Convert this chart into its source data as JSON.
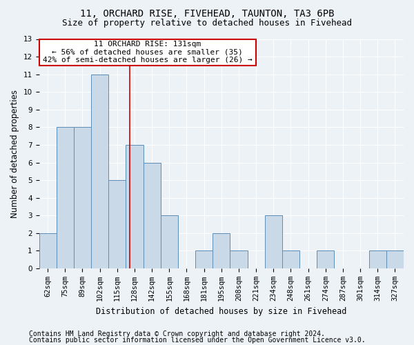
{
  "title1": "11, ORCHARD RISE, FIVEHEAD, TAUNTON, TA3 6PB",
  "title2": "Size of property relative to detached houses in Fivehead",
  "xlabel": "Distribution of detached houses by size in Fivehead",
  "ylabel": "Number of detached properties",
  "categories": [
    "62sqm",
    "75sqm",
    "89sqm",
    "102sqm",
    "115sqm",
    "128sqm",
    "142sqm",
    "155sqm",
    "168sqm",
    "181sqm",
    "195sqm",
    "208sqm",
    "221sqm",
    "234sqm",
    "248sqm",
    "261sqm",
    "274sqm",
    "287sqm",
    "301sqm",
    "314sqm",
    "327sqm"
  ],
  "values": [
    2,
    8,
    8,
    11,
    5,
    7,
    6,
    3,
    0,
    1,
    2,
    1,
    0,
    3,
    1,
    0,
    1,
    0,
    0,
    1,
    1
  ],
  "bar_color": "#c9d9e8",
  "bar_edge_color": "#5b8db8",
  "reference_line_x": 4.73,
  "ref_line_color": "#cc0000",
  "annotation_text": "11 ORCHARD RISE: 131sqm\n← 56% of detached houses are smaller (35)\n42% of semi-detached houses are larger (26) →",
  "annotation_box_color": "#cc0000",
  "ylim": [
    0,
    13
  ],
  "yticks": [
    0,
    1,
    2,
    3,
    4,
    5,
    6,
    7,
    8,
    9,
    10,
    11,
    12,
    13
  ],
  "footer1": "Contains HM Land Registry data © Crown copyright and database right 2024.",
  "footer2": "Contains public sector information licensed under the Open Government Licence v3.0.",
  "background_color": "#edf2f7",
  "grid_color": "#ffffff",
  "title1_fontsize": 10,
  "title2_fontsize": 9,
  "axis_label_fontsize": 8.5,
  "tick_fontsize": 7.5,
  "annotation_fontsize": 8,
  "footer_fontsize": 7
}
